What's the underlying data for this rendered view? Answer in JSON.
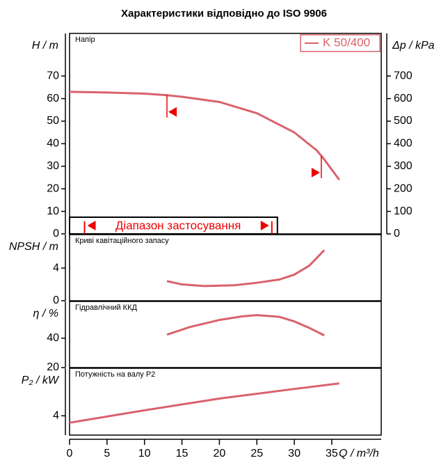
{
  "chart_data": [
    {
      "type": "line",
      "title": "Характеристики відповідно до ISO 9906",
      "panel_label": "Напір",
      "ylabel": "H / m",
      "y2label": "Δp / kPa",
      "xlim": [
        0,
        41.6
      ],
      "ylim": [
        0,
        88.9
      ],
      "yticks": [
        0,
        10,
        20,
        30,
        40,
        50,
        60,
        70
      ],
      "y2lim": [
        0,
        889
      ],
      "y2ticks": [
        0,
        100,
        200,
        300,
        400,
        500,
        600,
        700
      ],
      "legend": "top-right",
      "range_label": "Діапазон застосування",
      "range_x": [
        2,
        27
      ],
      "limits_x": [
        13,
        33.6
      ],
      "series": [
        {
          "name": "K 50/400",
          "color": "#d9626b",
          "x": [
            0,
            5,
            10,
            13,
            15,
            20,
            25,
            30,
            33,
            34,
            36
          ],
          "values": [
            63,
            62.7,
            62.2,
            61.5,
            60.8,
            58.5,
            53.5,
            45,
            37,
            33,
            24
          ]
        }
      ]
    },
    {
      "type": "line",
      "panel_label": "Криві кавітаційного запасу",
      "ylabel": "NPSH / m",
      "xlim": [
        0,
        41.6
      ],
      "ylim": [
        0,
        8.1
      ],
      "yticks": [
        0,
        4
      ],
      "series": [
        {
          "color": "#d9626b",
          "x": [
            13,
            15,
            18,
            22,
            25,
            28,
            30,
            32,
            34
          ],
          "values": [
            2.4,
            2.0,
            1.8,
            1.9,
            2.2,
            2.6,
            3.2,
            4.3,
            6.2
          ]
        }
      ]
    },
    {
      "type": "line",
      "panel_label": "Гідравлічний ККД",
      "ylabel": "η / %",
      "xlim": [
        0,
        41.6
      ],
      "ylim": [
        20,
        65
      ],
      "yticks": [
        20,
        40
      ],
      "series": [
        {
          "color": "#d9626b",
          "x": [
            13,
            16,
            20,
            23,
            25,
            28,
            30,
            32,
            34
          ],
          "values": [
            42.4,
            47.5,
            52.4,
            54.8,
            55.7,
            54.5,
            51.4,
            47,
            41.9
          ]
        }
      ]
    },
    {
      "type": "line",
      "panel_label": "Потужність на валу P2",
      "ylabel": "P₂ / kW",
      "xlim": [
        0,
        41.6
      ],
      "ylim": [
        1.2,
        10.9
      ],
      "yticks": [
        4
      ],
      "xlabel": "Q / m³/h",
      "xticks": [
        0,
        5,
        10,
        15,
        20,
        25,
        30,
        35
      ],
      "series": [
        {
          "color": "#d9626b",
          "x": [
            0,
            10,
            20,
            30,
            36
          ],
          "values": [
            3.0,
            4.8,
            6.5,
            7.9,
            8.7
          ]
        }
      ]
    }
  ]
}
